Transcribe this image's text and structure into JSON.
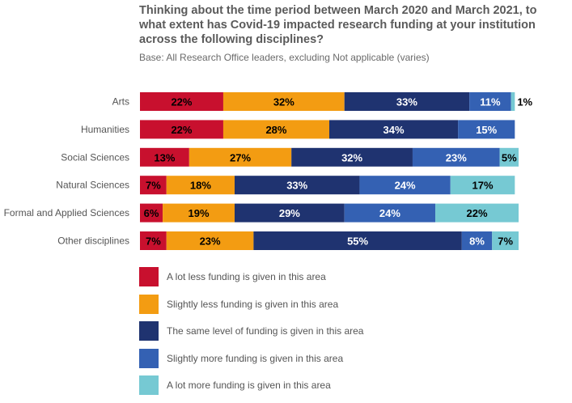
{
  "header": {
    "title": "Thinking about the time period between March 2020 and March 2021, to what extent has Covid-19 impacted research funding at your institution across the following disciplines?",
    "base": "Base: All Research Office leaders, excluding Not applicable (varies)"
  },
  "chart_data": {
    "type": "bar",
    "orientation": "horizontal",
    "stacked": true,
    "unit": "%",
    "xlim": [
      0,
      100
    ],
    "grid": false,
    "legend_position": "bottom",
    "categories": [
      "Arts",
      "Humanities",
      "Social Sciences",
      "Natural Sciences",
      "Formal and Applied Sciences",
      "Other disciplines"
    ],
    "series": [
      {
        "name": "A lot less funding is given in this area",
        "color": "#c8102e",
        "values": [
          22,
          22,
          13,
          7,
          6,
          7
        ]
      },
      {
        "name": "Slightly less funding is given in this area",
        "color": "#f39c12",
        "values": [
          32,
          28,
          27,
          18,
          19,
          23
        ]
      },
      {
        "name": "The same level of funding is given in this area",
        "color": "#1f3370",
        "values": [
          33,
          34,
          32,
          33,
          29,
          55
        ]
      },
      {
        "name": "Slightly more funding is given in this area",
        "color": "#3461b3",
        "values": [
          11,
          15,
          23,
          24,
          24,
          8
        ]
      },
      {
        "name": "A lot more funding is given in this area",
        "color": "#76c9d3",
        "values": [
          1,
          0,
          5,
          17,
          22,
          7
        ]
      }
    ]
  }
}
